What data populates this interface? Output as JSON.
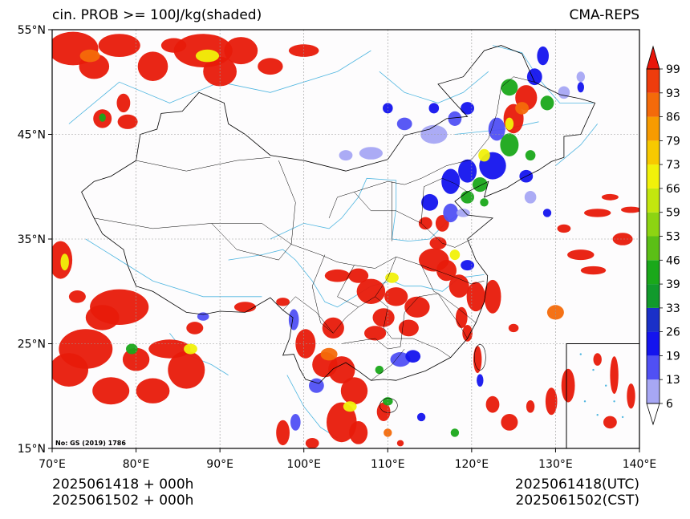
{
  "title_left": "cin. PROB >= 100J/kg(shaded)",
  "title_right": "CMA-REPS",
  "stamp": "No: GS (2019) 1786",
  "footer": {
    "init_utc": "2025061418  +  000h",
    "init_cst": "2025061502  +  000h",
    "valid_utc": "2025061418(UTC)",
    "valid_cst": "2025061502(CST)"
  },
  "axes": {
    "lon_ticks": [
      "70°E",
      "80°E",
      "90°E",
      "100°E",
      "110°E",
      "120°E",
      "130°E",
      "140°E"
    ],
    "lat_ticks": [
      "15°N",
      "25°N",
      "35°N",
      "45°N",
      "55°N"
    ],
    "lon_range": [
      70,
      140
    ],
    "lat_range": [
      15,
      55
    ],
    "grid": true
  },
  "colorbar": {
    "levels": [
      "6",
      "13",
      "19",
      "26",
      "33",
      "39",
      "46",
      "53",
      "59",
      "66",
      "73",
      "79",
      "86",
      "93",
      "99"
    ],
    "colors": [
      "#a7a7f4",
      "#5050f4",
      "#1414ee",
      "#1a30c8",
      "#119a2c",
      "#1aa81a",
      "#5bbf16",
      "#8dd412",
      "#c3e60e",
      "#f1f10a",
      "#f7c900",
      "#f79b00",
      "#f46a0a",
      "#ee3c0c",
      "#e81a0a"
    ],
    "extend_low_color": "#ffffff",
    "extend_high_color": "#e8160a"
  },
  "colors": {
    "map_background": "#fdfcfd",
    "boundary": "#000000",
    "river": "#4fb6e0",
    "grid": "#999999"
  }
}
